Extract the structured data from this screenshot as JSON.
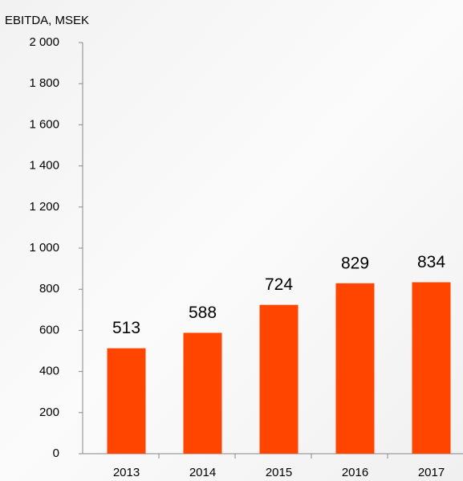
{
  "chart_data": {
    "type": "bar",
    "title": "EBITDA, MSEK",
    "categories": [
      "2013",
      "2014",
      "2015",
      "2016",
      "2017"
    ],
    "values": [
      513,
      588,
      724,
      829,
      834
    ],
    "color": "#ff4500",
    "ylim": [
      0,
      2000
    ],
    "yticks": [
      0,
      200,
      400,
      600,
      800,
      {
        "value": 1000,
        "label": "1 000"
      },
      {
        "value": 1200,
        "label": "1 200"
      },
      {
        "value": 1400,
        "label": "1 400"
      },
      {
        "value": 1600,
        "label": "1 600"
      },
      {
        "value": 1800,
        "label": "1 800"
      },
      {
        "value": 2000,
        "label": "2 000"
      }
    ]
  }
}
